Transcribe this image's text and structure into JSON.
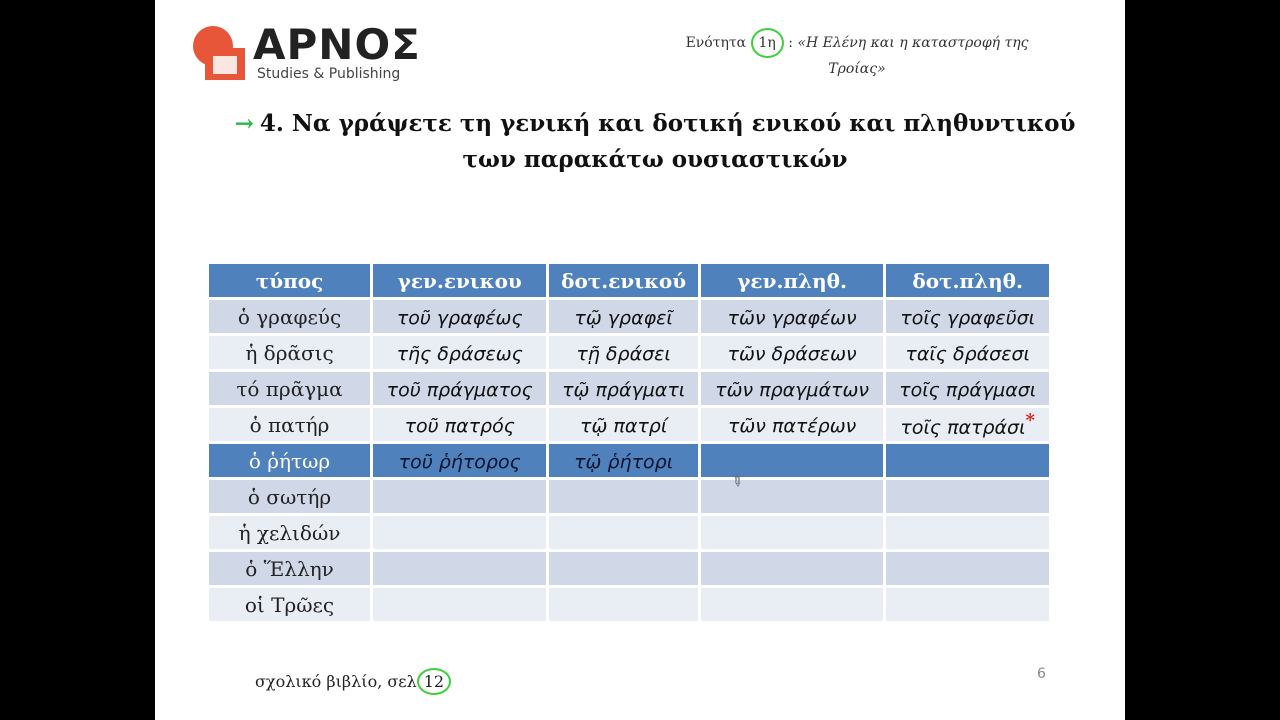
{
  "logo": {
    "name": "ΑΡΝΟΣ",
    "subtitle": "Studies & Publishing",
    "colors": {
      "mark": "#e8563a"
    }
  },
  "header": {
    "unit_label": "Ενότητα",
    "unit_number": "1η",
    "unit_separator": ":",
    "unit_title": "«Η Ελένη και η καταστροφή της Τροίας»"
  },
  "question": {
    "arrow_icon": "arrow-right-icon",
    "line1": "4. Να γράψετε τη γενική και δοτική ενικού και πληθυντικού",
    "line2": "των παρακάτω ουσιαστικών"
  },
  "table": {
    "headers": [
      "τύπος",
      "γεν.ενικου",
      "δοτ.ενικού",
      "γεν.πληθ.",
      "δοτ.πληθ."
    ],
    "rows": [
      {
        "noun": "ὁ γραφεύς",
        "cells": [
          "τοῦ γραφέως",
          "τῷ γραφεῖ",
          "τῶν γραφέων",
          "τοῖς γραφεῦσι"
        ]
      },
      {
        "noun": "ἡ δρᾶσις",
        "cells": [
          "τῆς δράσεως",
          "τῇ δράσει",
          "τῶν δράσεων",
          "ταῖς δράσεσι"
        ]
      },
      {
        "noun": "τό πρᾶγμα",
        "cells": [
          "τοῦ πράγματος",
          "τῷ πράγματι",
          "τῶν πραγμάτων",
          "τοῖς πράγμασι"
        ]
      },
      {
        "noun": "ὁ πατήρ",
        "cells": [
          "τοῦ πατρός",
          "τῷ πατρί",
          "τῶν πατέρων",
          "τοῖς πατράσι"
        ]
      },
      {
        "noun": "ὁ ῥήτωρ",
        "cells": [
          "τοῦ ῥήτορος",
          "τῷ ῥήτορι",
          "",
          ""
        ]
      },
      {
        "noun": "ὁ σωτήρ",
        "cells": [
          "",
          "",
          "",
          ""
        ]
      },
      {
        "noun": "ἡ χελιδών",
        "cells": [
          "",
          "",
          "",
          ""
        ]
      },
      {
        "noun": "ὁ Ἕλλην",
        "cells": [
          "",
          "",
          "",
          ""
        ]
      },
      {
        "noun": "οἱ Τρῶες",
        "cells": [
          "",
          "",
          "",
          ""
        ]
      }
    ],
    "mark": "*"
  },
  "footer": {
    "text": "σχολικό βιβλίο, σελ",
    "page_ref": "12",
    "page_number": "6"
  }
}
